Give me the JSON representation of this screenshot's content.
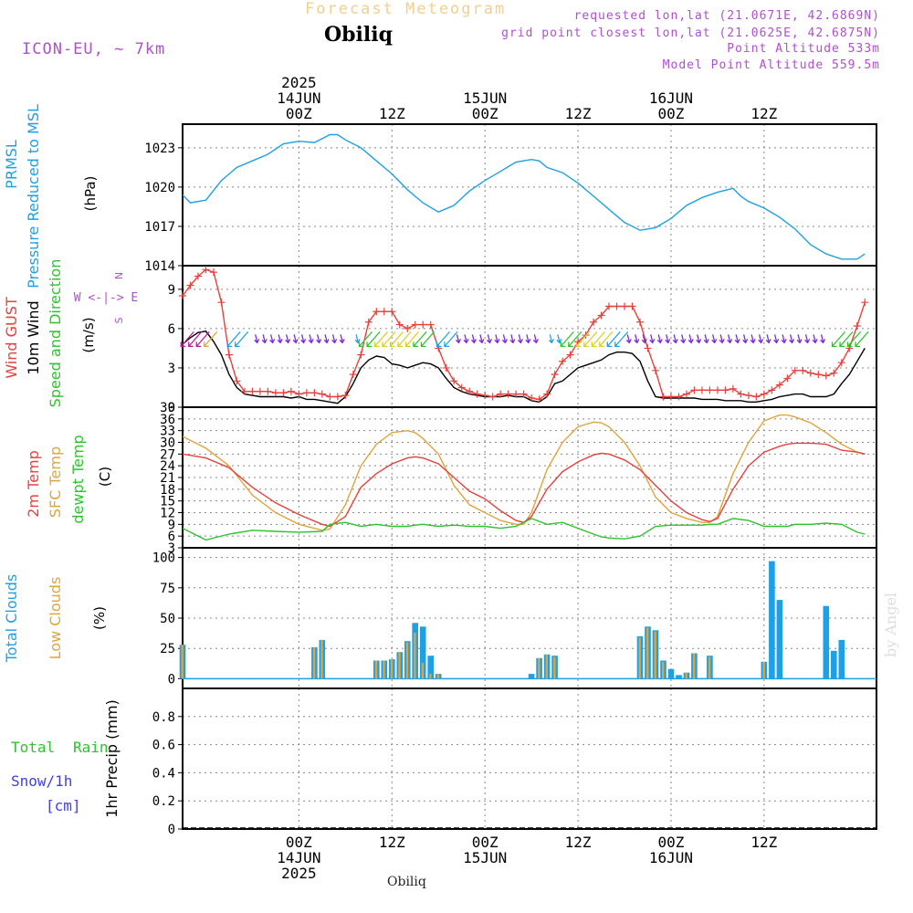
{
  "header": {
    "title": "Forecast Meteogram",
    "station": "Obiliq",
    "model": "ICON-EU, ~ 7km",
    "requested": "requested lon,lat (21.0671E, 42.6869N)",
    "grid_point": "grid point closest lon,lat (21.0625E, 42.6875N)",
    "point_altitude": "Point Altitude 533m",
    "model_altitude": "Model Point Altitude 559.5m",
    "credit": "by Angel",
    "footer_station": "Obiliq"
  },
  "colors": {
    "pressure": "#1ea0e6",
    "gust": "#e8413c",
    "wind": "#000000",
    "t2m": "#e8413c",
    "sfc": "#e0a43c",
    "dewpt": "#2bc42b",
    "total_cloud": "#1ea0e6",
    "low_cloud": "#e0a43c",
    "rain": "#2bc42b",
    "snow": "#4040e0",
    "label_purple": "#b04fd0"
  },
  "chart_data": [
    {
      "type": "line",
      "title": "PRMSL Pressure Reduced to MSL",
      "ylabel": "(hPa)",
      "ylim": [
        1014,
        1024.8
      ],
      "yticks": [
        "1014",
        "1017",
        "1020",
        "1023"
      ],
      "ytick_values": [
        1014,
        1017,
        1020,
        1023
      ],
      "grid": true,
      "x": [
        -15,
        -14,
        -12,
        -10,
        -8,
        -6,
        -4,
        -2,
        0,
        2,
        4,
        5,
        6,
        8,
        10,
        12,
        14,
        16,
        18,
        20,
        22,
        24,
        26,
        28,
        30,
        31,
        32,
        34,
        36,
        38,
        40,
        42,
        44,
        46,
        48,
        50,
        52,
        54,
        56,
        57,
        58,
        60,
        62,
        64,
        66,
        68,
        70,
        72,
        73
      ],
      "series": [
        {
          "name": "PRMSL Pressure Reduced to MSL",
          "values": [
            1019.4,
            1018.8,
            1019.0,
            1020.5,
            1021.5,
            1022.0,
            1022.5,
            1023.3,
            1023.5,
            1023.4,
            1024.0,
            1024.0,
            1023.6,
            1023.0,
            1022.0,
            1021.0,
            1019.8,
            1018.8,
            1018.1,
            1018.6,
            1019.7,
            1020.5,
            1021.2,
            1021.9,
            1022.1,
            1022.0,
            1021.5,
            1021.1,
            1020.3,
            1019.3,
            1018.3,
            1017.3,
            1016.7,
            1016.9,
            1017.6,
            1018.6,
            1019.2,
            1019.6,
            1019.9,
            1019.3,
            1018.9,
            1018.4,
            1017.7,
            1016.8,
            1015.6,
            1014.9,
            1014.5,
            1014.5,
            1014.9
          ]
        }
      ]
    },
    {
      "type": "line",
      "title": "Wind GUST 10m Wind Speed and Direction",
      "ylabel": "(m/s)",
      "ylim": [
        0,
        10.8
      ],
      "yticks": [
        "0",
        "3",
        "6",
        "9"
      ],
      "ytick_values": [
        0,
        3,
        6,
        9
      ],
      "grid": true,
      "compass": {
        "north": "N",
        "south": "S",
        "west": "W",
        "east": "E",
        "rose": "W <-|-> E"
      },
      "x": [
        -15,
        -14,
        -13,
        -12,
        -11,
        -10,
        -9,
        -8,
        -7,
        -6,
        -5,
        -4,
        -3,
        -2,
        -1,
        0,
        1,
        2,
        3,
        4,
        5,
        6,
        7,
        8,
        9,
        10,
        11,
        12,
        13,
        14,
        15,
        16,
        17,
        18,
        19,
        20,
        21,
        22,
        23,
        24,
        25,
        26,
        27,
        28,
        29,
        30,
        31,
        32,
        33,
        34,
        35,
        36,
        37,
        38,
        39,
        40,
        41,
        42,
        43,
        44,
        45,
        46,
        47,
        48,
        49,
        50,
        51,
        52,
        53,
        54,
        55,
        56,
        57,
        58,
        59,
        60,
        61,
        62,
        63,
        64,
        65,
        66,
        67,
        68,
        69,
        70,
        71,
        72,
        73
      ],
      "series": [
        {
          "name": "Wind GUST",
          "values": [
            8.5,
            9.3,
            10.0,
            10.5,
            10.3,
            8.0,
            4.0,
            2.0,
            1.2,
            1.2,
            1.2,
            1.2,
            1.1,
            1.1,
            1.2,
            1.0,
            1.1,
            1.1,
            1.0,
            0.8,
            0.8,
            0.9,
            2.5,
            4.0,
            6.5,
            7.3,
            7.3,
            7.3,
            6.3,
            6.0,
            6.3,
            6.3,
            6.3,
            4.5,
            3.0,
            2.0,
            1.5,
            1.2,
            1.0,
            0.9,
            0.8,
            1.0,
            1.0,
            1.0,
            1.0,
            0.7,
            0.6,
            1.0,
            2.5,
            3.5,
            4.0,
            5.0,
            5.5,
            6.5,
            7.0,
            7.7,
            7.7,
            7.7,
            7.7,
            6.5,
            4.5,
            2.8,
            0.8,
            0.8,
            0.8,
            1.0,
            1.3,
            1.3,
            1.3,
            1.3,
            1.3,
            1.4,
            1.0,
            0.9,
            0.8,
            1.0,
            1.3,
            1.7,
            2.2,
            2.8,
            2.8,
            2.6,
            2.5,
            2.4,
            2.6,
            3.4,
            4.5,
            6.2,
            8.0
          ]
        },
        {
          "name": "10m Wind",
          "values": [
            4.8,
            5.3,
            5.7,
            5.8,
            5.0,
            4.0,
            2.5,
            1.5,
            1.0,
            0.9,
            0.8,
            0.8,
            0.8,
            0.8,
            0.7,
            0.8,
            0.6,
            0.6,
            0.5,
            0.4,
            0.3,
            0.8,
            1.8,
            3.0,
            3.6,
            3.9,
            3.8,
            3.3,
            3.2,
            3.0,
            3.2,
            3.4,
            3.3,
            3.0,
            2.2,
            1.5,
            1.2,
            1.0,
            0.9,
            0.8,
            0.8,
            0.8,
            0.9,
            0.8,
            0.8,
            0.5,
            0.4,
            0.8,
            1.8,
            2.0,
            2.5,
            3.0,
            3.2,
            3.4,
            3.6,
            4.0,
            4.2,
            4.2,
            4.1,
            3.5,
            2.0,
            0.8,
            0.7,
            0.7,
            0.7,
            0.7,
            0.7,
            0.6,
            0.6,
            0.6,
            0.5,
            0.5,
            0.5,
            0.4,
            0.4,
            0.5,
            0.6,
            0.8,
            0.9,
            1.0,
            1.0,
            0.8,
            0.8,
            0.8,
            1.0,
            1.8,
            2.5,
            3.5,
            4.5
          ]
        }
      ]
    },
    {
      "type": "line",
      "title": "2m Temp SFC Temp dewpt Temp",
      "ylabel": "(C)",
      "ylim": [
        3,
        39
      ],
      "yticks": [
        "3",
        "6",
        "9",
        "12",
        "15",
        "18",
        "21",
        "24",
        "27",
        "30",
        "33",
        "36",
        "39"
      ],
      "ytick_values": [
        3,
        6,
        9,
        12,
        15,
        18,
        21,
        24,
        27,
        30,
        33,
        36,
        39
      ],
      "grid": true,
      "x": [
        -15,
        -12,
        -9,
        -6,
        -3,
        0,
        3,
        4,
        6,
        8,
        10,
        12,
        14,
        15,
        16,
        18,
        20,
        22,
        24,
        26,
        28,
        29,
        30,
        32,
        34,
        36,
        38,
        39,
        40,
        42,
        44,
        46,
        48,
        50,
        52,
        53,
        54,
        56,
        58,
        60,
        62,
        63,
        64,
        66,
        68,
        70,
        72,
        73
      ],
      "series": [
        {
          "name": "2m Temp",
          "values": [
            27.0,
            26.0,
            23.5,
            18.5,
            14.5,
            11.5,
            9.0,
            8.5,
            11.0,
            18.5,
            22.0,
            24.5,
            26.0,
            26.3,
            26.0,
            24.5,
            21.0,
            17.5,
            15.5,
            12.5,
            10.0,
            9.5,
            11.0,
            18.0,
            22.5,
            25.0,
            26.8,
            27.2,
            27.0,
            25.5,
            23.0,
            19.0,
            15.0,
            12.0,
            10.2,
            9.7,
            10.5,
            18.0,
            24.0,
            27.5,
            29.0,
            29.5,
            29.8,
            29.8,
            29.5,
            28.0,
            27.5,
            27.0
          ]
        },
        {
          "name": "SFC Temp",
          "values": [
            31.5,
            28.5,
            24.0,
            16.5,
            12.0,
            9.0,
            7.5,
            7.8,
            14.0,
            24.0,
            29.5,
            32.5,
            33.0,
            32.5,
            31.0,
            27.0,
            19.0,
            14.0,
            12.0,
            10.0,
            9.0,
            9.0,
            12.0,
            23.0,
            30.0,
            34.0,
            35.2,
            35.0,
            34.0,
            30.0,
            24.0,
            16.0,
            12.0,
            10.5,
            9.5,
            9.5,
            11.0,
            22.0,
            30.0,
            35.5,
            37.0,
            37.0,
            36.5,
            35.0,
            32.5,
            29.5,
            27.5,
            27.0
          ]
        },
        {
          "name": "dewpt Temp",
          "values": [
            8.0,
            5.0,
            6.5,
            7.5,
            7.2,
            7.0,
            7.2,
            9.0,
            9.5,
            8.5,
            9.0,
            8.5,
            8.5,
            8.8,
            9.0,
            8.5,
            8.8,
            8.5,
            8.5,
            8.0,
            8.5,
            9.5,
            10.5,
            9.0,
            9.5,
            8.0,
            6.5,
            5.8,
            5.5,
            5.3,
            6.0,
            8.5,
            8.8,
            8.8,
            8.8,
            9.0,
            9.0,
            10.5,
            10.0,
            8.5,
            8.5,
            8.5,
            9.0,
            9.0,
            9.3,
            9.0,
            7.0,
            6.5
          ]
        }
      ]
    },
    {
      "type": "bar",
      "title": "Total Clouds Low Clouds",
      "ylabel": "(%)",
      "ylim": [
        -8,
        108
      ],
      "yticks": [
        "0",
        "25",
        "50",
        "75",
        "100"
      ],
      "ytick_values": [
        0,
        25,
        50,
        75,
        100
      ],
      "grid": true,
      "x": [
        -15,
        2,
        3,
        10,
        11,
        12,
        13,
        14,
        15,
        16,
        17,
        18,
        30,
        31,
        32,
        33,
        44,
        45,
        46,
        47,
        48,
        49,
        50,
        51,
        53,
        60,
        61,
        62,
        68,
        69,
        70,
        71,
        72,
        73
      ],
      "series": [
        {
          "name": "Total Clouds",
          "values": [
            28,
            26,
            32,
            15,
            15,
            16,
            22,
            31,
            46,
            43,
            19,
            4,
            4,
            17,
            20,
            19,
            35,
            43,
            40,
            15,
            8,
            3,
            5,
            21,
            19,
            14,
            97,
            65,
            60,
            23,
            32,
            0,
            0,
            0
          ]
        },
        {
          "name": "Low Clouds",
          "values": [
            28,
            26,
            32,
            15,
            15,
            16,
            22,
            30,
            38,
            13,
            4,
            4,
            0,
            17,
            20,
            18,
            34,
            42,
            39,
            14,
            0,
            0,
            5,
            21,
            18,
            14,
            0,
            0,
            0,
            0,
            0,
            0,
            0,
            0
          ]
        }
      ]
    },
    {
      "type": "bar",
      "title": "Total Rain Snow/1h",
      "ylabel": "1hr Precip (mm)",
      "snow_unit": "[cm]",
      "ylim": [
        0,
        1
      ],
      "yticks": [
        "0",
        "0.2",
        "0.4",
        "0.6",
        "0.8"
      ],
      "ytick_values": [
        0,
        0.2,
        0.4,
        0.6,
        0.8
      ],
      "grid": true,
      "x": [],
      "series": [
        {
          "name": "Total Rain",
          "values": []
        },
        {
          "name": "Snow/1h",
          "values": []
        }
      ]
    }
  ],
  "x_axis": {
    "range_hours": [
      -15,
      74.5
    ],
    "top_ticks": [
      {
        "hour": 0,
        "lines": [
          "2025",
          "14JUN",
          "00Z"
        ]
      },
      {
        "hour": 12,
        "lines": [
          "12Z"
        ]
      },
      {
        "hour": 24,
        "lines": [
          "15JUN",
          "00Z"
        ]
      },
      {
        "hour": 36,
        "lines": [
          "12Z"
        ]
      },
      {
        "hour": 48,
        "lines": [
          "16JUN",
          "00Z"
        ]
      },
      {
        "hour": 60,
        "lines": [
          "12Z"
        ]
      }
    ],
    "bottom_ticks": [
      {
        "hour": 0,
        "lines": [
          "00Z",
          "14JUN",
          "2025"
        ]
      },
      {
        "hour": 12,
        "lines": [
          "12Z"
        ]
      },
      {
        "hour": 24,
        "lines": [
          "00Z",
          "15JUN"
        ]
      },
      {
        "hour": 36,
        "lines": [
          "12Z"
        ]
      },
      {
        "hour": 48,
        "lines": [
          "00Z",
          "16JUN"
        ]
      },
      {
        "hour": 60,
        "lines": [
          "12Z"
        ]
      }
    ]
  },
  "wind_barbs": [
    {
      "from": -15,
      "to": -12,
      "color": "#c0189a",
      "dir": "sw"
    },
    {
      "from": -12,
      "to": -11,
      "color": "#e0a43c",
      "dir": "sw"
    },
    {
      "from": -9,
      "to": -7,
      "color": "#1ea0e6",
      "dir": "sw"
    },
    {
      "from": -6,
      "to": 6,
      "color": "#7a2ad8",
      "dir": "s"
    },
    {
      "from": 7,
      "to": 8,
      "color": "#1ea0e6",
      "dir": "s"
    },
    {
      "from": 8,
      "to": 10,
      "color": "#2bc42b",
      "dir": "sw"
    },
    {
      "from": 10,
      "to": 15,
      "color": "#d8d020",
      "dir": "sw"
    },
    {
      "from": 15,
      "to": 17,
      "color": "#2bc42b",
      "dir": "sw"
    },
    {
      "from": 18,
      "to": 20,
      "color": "#1ea0e6",
      "dir": "sw"
    },
    {
      "from": 20,
      "to": 31,
      "color": "#7a2ad8",
      "dir": "s"
    },
    {
      "from": 32,
      "to": 34,
      "color": "#1ea0e6",
      "dir": "s"
    },
    {
      "from": 34,
      "to": 36,
      "color": "#2bc42b",
      "dir": "sw"
    },
    {
      "from": 36,
      "to": 40,
      "color": "#d8d020",
      "dir": "sw"
    },
    {
      "from": 40,
      "to": 42,
      "color": "#1ea0e6",
      "dir": "sw"
    },
    {
      "from": 42,
      "to": 68,
      "color": "#7a2ad8",
      "dir": "s"
    },
    {
      "from": 69,
      "to": 73,
      "color": "#2bc42b",
      "dir": "sw"
    }
  ]
}
